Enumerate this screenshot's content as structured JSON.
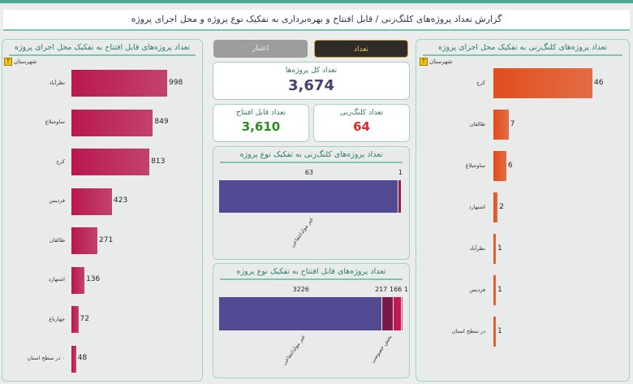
{
  "header": {
    "title": "گزارش تعداد پروژه‌های کلنگ‌زنی / قابل افتتاح و بهره‌برداری به تفکیک نوع پروژه و محل اجرای پروژه"
  },
  "toggle": {
    "count_label": "تعداد",
    "credit_label": "اعتبار",
    "active": "count",
    "active_color": "#2f2b28"
  },
  "kpis": {
    "total": {
      "label": "تعداد کل پروژه‌ها",
      "value": "3,674",
      "color": "#4a3f6e"
    },
    "openable": {
      "label": "تعداد قابل افتتاح",
      "value": "3,610",
      "color": "#2e8b1e"
    },
    "groundbreaking": {
      "label": "تعداد کلنگ‌زنی",
      "value": "64",
      "color": "#d82c2c"
    }
  },
  "chart_data": [
    {
      "id": "left",
      "type": "bar",
      "orientation": "horizontal",
      "title": "تعداد پروژه‌های قابل افتتاح به تفکیک محل اجرای پروژه",
      "axis_label": "شهرستان",
      "color": "#b8184f",
      "categories": [
        "نظرآباد",
        "ساوجبلاغ",
        "کرج",
        "فردیس",
        "طالقان",
        "اشتهارد",
        "چهارباغ",
        "۰ در سطح استان"
      ],
      "values": [
        998,
        849,
        813,
        423,
        271,
        136,
        72,
        48
      ]
    },
    {
      "id": "right",
      "type": "bar",
      "orientation": "horizontal",
      "title": "تعداد پروژه‌های کلنگ‌زنی به تفکیک محل اجرای پروژه",
      "axis_label": "شهرستان",
      "color": "#e04e1c",
      "categories": [
        "کرج",
        "طالقان",
        "ساوجبلاغ",
        "اشتهارد",
        "نظرآباد",
        "فردیس",
        "در سطح استان"
      ],
      "values": [
        46,
        7,
        6,
        2,
        1,
        1,
        1
      ]
    },
    {
      "id": "mid1",
      "type": "bar",
      "stacked": true,
      "title": "تعداد پروژه‌های کلنگ‌زنی به تفکیک نوع پروژه",
      "series": [
        {
          "label": "غیر مولدانتفاعی",
          "value": 63,
          "color": "#534a94"
        },
        {
          "label": "",
          "value": 1,
          "color": "#a01850"
        }
      ]
    },
    {
      "id": "mid2",
      "type": "bar",
      "stacked": true,
      "title": "تعداد پروژه‌های قابل افتتاح به تفکیک نوع پروژه",
      "series": [
        {
          "label": "غیر مولدانتفاعی",
          "value": 3226,
          "color": "#534a94"
        },
        {
          "label": "بخش خصوصی",
          "value": 217,
          "color": "#7a1a4a"
        },
        {
          "label": "",
          "value": 166,
          "color": "#c21a50"
        },
        {
          "label": "",
          "value": 1,
          "color": "#e0406a"
        }
      ]
    }
  ]
}
